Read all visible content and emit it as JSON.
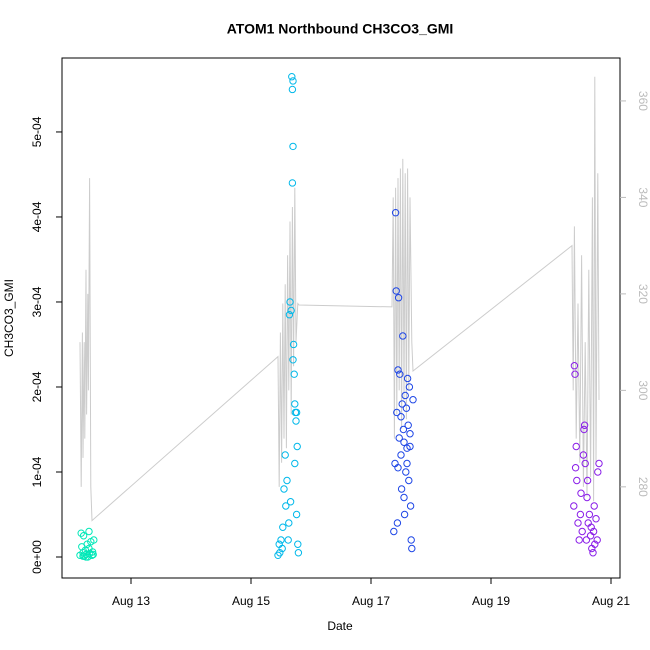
{
  "chart_data": {
    "type": "scatter",
    "title": "ATOM1 Northbound CH3CO3_GMI",
    "x_label": "Date",
    "y_label": "CH3CO3_GMI",
    "xlim": [
      11.85,
      21.15
    ],
    "xticks": [
      {
        "value": 13,
        "label": "Aug 13"
      },
      {
        "value": 15,
        "label": "Aug 15"
      },
      {
        "value": 17,
        "label": "Aug 17"
      },
      {
        "value": 19,
        "label": "Aug 19"
      },
      {
        "value": 21,
        "label": "Aug 21"
      }
    ],
    "ylim": [
      -2.47e-05,
      0.000587
    ],
    "yticks": [
      {
        "value": 0,
        "label": "0e+00"
      },
      {
        "value": 0.0001,
        "label": "1e-04"
      },
      {
        "value": 0.0002,
        "label": "2e-04"
      },
      {
        "value": 0.0003,
        "label": "3e-04"
      },
      {
        "value": 0.0004,
        "label": "4e-04"
      },
      {
        "value": 0.0005,
        "label": "5e-04"
      }
    ],
    "y2lim": [
      261.1,
      368.9
    ],
    "y2ticks": [
      280,
      300,
      320,
      340,
      360
    ],
    "y2color": "#bbbbbb",
    "series": [
      {
        "type": "line",
        "axis": "y2",
        "color": "#cccccc",
        "x": [
          12.15,
          12.17,
          12.19,
          12.2,
          12.22,
          12.23,
          12.25,
          12.26,
          12.28,
          12.29,
          12.31,
          12.33,
          12.35,
          15.45,
          15.47,
          15.49,
          15.51,
          15.53,
          15.55,
          15.57,
          15.59,
          15.61,
          15.63,
          15.65,
          15.67,
          15.69,
          15.71,
          15.73,
          15.75,
          15.78,
          15.8,
          17.35,
          17.37,
          17.39,
          17.41,
          17.43,
          17.45,
          17.47,
          17.49,
          17.51,
          17.53,
          17.55,
          17.57,
          17.59,
          17.61,
          17.63,
          17.65,
          17.68,
          17.7,
          20.35,
          20.37,
          20.39,
          20.42,
          20.45,
          20.48,
          20.51,
          20.54,
          20.57,
          20.6,
          20.63,
          20.66,
          20.69,
          20.71,
          20.73,
          20.75,
          20.78,
          20.8
        ],
        "values": [
          310,
          280,
          312,
          286,
          310,
          290,
          325,
          295,
          320,
          300,
          344,
          280,
          273,
          307,
          280,
          312,
          285,
          318,
          290,
          322,
          288,
          328,
          300,
          335,
          295,
          338,
          305,
          342,
          310,
          318,
          317.7,
          317.3,
          340,
          290,
          342,
          295,
          344,
          300,
          346,
          292,
          348,
          298,
          345,
          294,
          346,
          300,
          340,
          310,
          304,
          330,
          300,
          334,
          290,
          318,
          285,
          328,
          280,
          310,
          278,
          325,
          282,
          340,
          277,
          365,
          285,
          345,
          298
        ]
      },
      {
        "color": "#00e8b8",
        "x": [
          12.15,
          12.17,
          12.18,
          12.2,
          12.21,
          12.22,
          12.24,
          12.25,
          12.27,
          12.28,
          12.3,
          12.31,
          12.33,
          12.35,
          12.36,
          12.37,
          12.38,
          12.2,
          12.25,
          12.3
        ],
        "values": [
          2e-06,
          2.8e-05,
          1.2e-05,
          5e-06,
          2.5e-05,
          1e-06,
          8e-06,
          3e-06,
          1.5e-05,
          0,
          3e-05,
          4e-06,
          1.8e-05,
          2e-06,
          6e-06,
          3e-06,
          2e-05,
          1e-06,
          0,
          1e-05
        ]
      },
      {
        "color": "#00b8ea",
        "x": [
          15.45,
          15.47,
          15.48,
          15.5,
          15.52,
          15.53,
          15.55,
          15.57,
          15.58,
          15.6,
          15.62,
          15.63,
          15.65,
          15.67,
          15.68,
          15.69,
          15.7,
          15.7,
          15.69,
          15.71,
          15.72,
          15.73,
          15.74,
          15.75,
          15.76,
          15.77,
          15.78,
          15.79,
          15.64,
          15.66,
          15.7,
          15.73,
          15.76
        ],
        "values": [
          2e-06,
          1.5e-05,
          5e-06,
          2e-05,
          1e-05,
          3.5e-05,
          8e-05,
          0.00012,
          6e-05,
          9e-05,
          2e-05,
          4e-05,
          0.0003,
          0.00029,
          0.000565,
          0.00055,
          0.00056,
          0.000483,
          0.00044,
          0.00025,
          0.000215,
          0.00018,
          0.00017,
          0.00016,
          5e-05,
          0.00013,
          1.5e-05,
          5e-06,
          0.000285,
          6.5e-05,
          0.000232,
          0.00011,
          0.00017
        ]
      },
      {
        "color": "#1e46e6",
        "x": [
          17.38,
          17.4,
          17.41,
          17.42,
          17.43,
          17.44,
          17.45,
          17.46,
          17.47,
          17.48,
          17.5,
          17.51,
          17.52,
          17.53,
          17.54,
          17.55,
          17.56,
          17.57,
          17.58,
          17.59,
          17.6,
          17.61,
          17.62,
          17.63,
          17.64,
          17.65,
          17.66,
          17.67,
          17.68,
          17.7,
          17.45,
          17.5,
          17.55,
          17.6,
          17.65
        ],
        "values": [
          3e-05,
          0.00011,
          0.000405,
          0.000313,
          0.00017,
          4e-05,
          0.00022,
          0.000305,
          0.00014,
          0.000215,
          0.00012,
          8e-05,
          0.00018,
          0.00026,
          0.00015,
          0.000135,
          5e-05,
          0.00019,
          0.0001,
          0.000175,
          0.000128,
          0.00021,
          0.000155,
          9e-05,
          0.0002,
          0.00013,
          6e-05,
          2e-05,
          1e-05,
          0.000185,
          0.000105,
          0.000165,
          7e-05,
          0.00011,
          0.000145
        ]
      },
      {
        "color": "#8a1ee8",
        "x": [
          20.38,
          20.39,
          20.4,
          20.41,
          20.42,
          20.43,
          20.45,
          20.47,
          20.49,
          20.5,
          20.52,
          20.54,
          20.55,
          20.57,
          20.59,
          20.6,
          20.62,
          20.64,
          20.66,
          20.68,
          20.7,
          20.71,
          20.72,
          20.73,
          20.75,
          20.77,
          20.78,
          20.8,
          20.56,
          20.61,
          20.67
        ],
        "values": [
          6e-05,
          0.000225,
          0.000215,
          0.000105,
          0.00013,
          9e-05,
          4e-05,
          2e-05,
          5e-05,
          7.5e-05,
          3e-05,
          0.00012,
          0.00015,
          0.00011,
          2e-05,
          7e-05,
          4e-05,
          5e-05,
          2.5e-05,
          1e-05,
          5e-06,
          3e-05,
          6e-05,
          1.5e-05,
          4.5e-05,
          2e-05,
          0.0001,
          0.00011,
          0.000155,
          9e-05,
          3.5e-05
        ]
      }
    ]
  }
}
